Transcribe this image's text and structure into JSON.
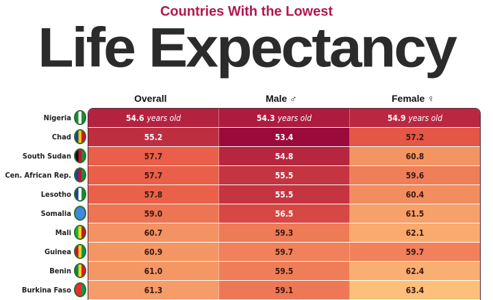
{
  "subtitle": "Countries With the Lowest",
  "title": "Life Expectancy",
  "chart_data": {
    "type": "heatmap",
    "columns": [
      "Overall",
      "Male ♂",
      "Female ♀"
    ],
    "unit_label": "years old",
    "rows": [
      {
        "country": "Nigeria",
        "values": [
          54.6,
          54.3,
          54.9
        ],
        "flag": [
          "#1a8a3a",
          "#ffffff",
          "#1a8a3a"
        ]
      },
      {
        "country": "Chad",
        "values": [
          55.2,
          53.4,
          57.2
        ],
        "flag": [
          "#1f3f9a",
          "#f5c400",
          "#d21034"
        ]
      },
      {
        "country": "South Sudan",
        "values": [
          57.7,
          54.8,
          60.8
        ],
        "flag": [
          "#111111",
          "#c8102e",
          "#1a8a3a"
        ]
      },
      {
        "country": "Cen. African Rep.",
        "values": [
          57.7,
          55.5,
          59.6
        ],
        "flag": [
          "#1f3f9a",
          "#c8102e",
          "#1a8a3a"
        ]
      },
      {
        "country": "Lesotho",
        "values": [
          57.8,
          55.5,
          60.4
        ],
        "flag": [
          "#1f3f9a",
          "#ffffff",
          "#1a8a3a"
        ]
      },
      {
        "country": "Somalia",
        "values": [
          59.0,
          56.5,
          61.5
        ],
        "flag": [
          "#4189dd",
          "#4189dd",
          "#4189dd"
        ]
      },
      {
        "country": "Mali",
        "values": [
          60.7,
          59.3,
          62.1
        ],
        "flag": [
          "#14b53a",
          "#fcd116",
          "#ce1126"
        ]
      },
      {
        "country": "Guinea",
        "values": [
          60.9,
          59.7,
          59.7
        ],
        "flag": [
          "#ce1126",
          "#fcd116",
          "#009460"
        ]
      },
      {
        "country": "Benin",
        "values": [
          61.0,
          59.5,
          62.4
        ],
        "flag": [
          "#008751",
          "#fcd116",
          "#e8112d"
        ]
      },
      {
        "country": "Burkina Faso",
        "values": [
          61.3,
          59.1,
          63.4
        ],
        "flag": [
          "#ef2b2d",
          "#ef2b2d",
          "#009e49"
        ]
      }
    ],
    "color_scale": {
      "low": "#9c0a3c",
      "high": "#fcc07a",
      "min": 53.4,
      "max": 63.4
    }
  }
}
